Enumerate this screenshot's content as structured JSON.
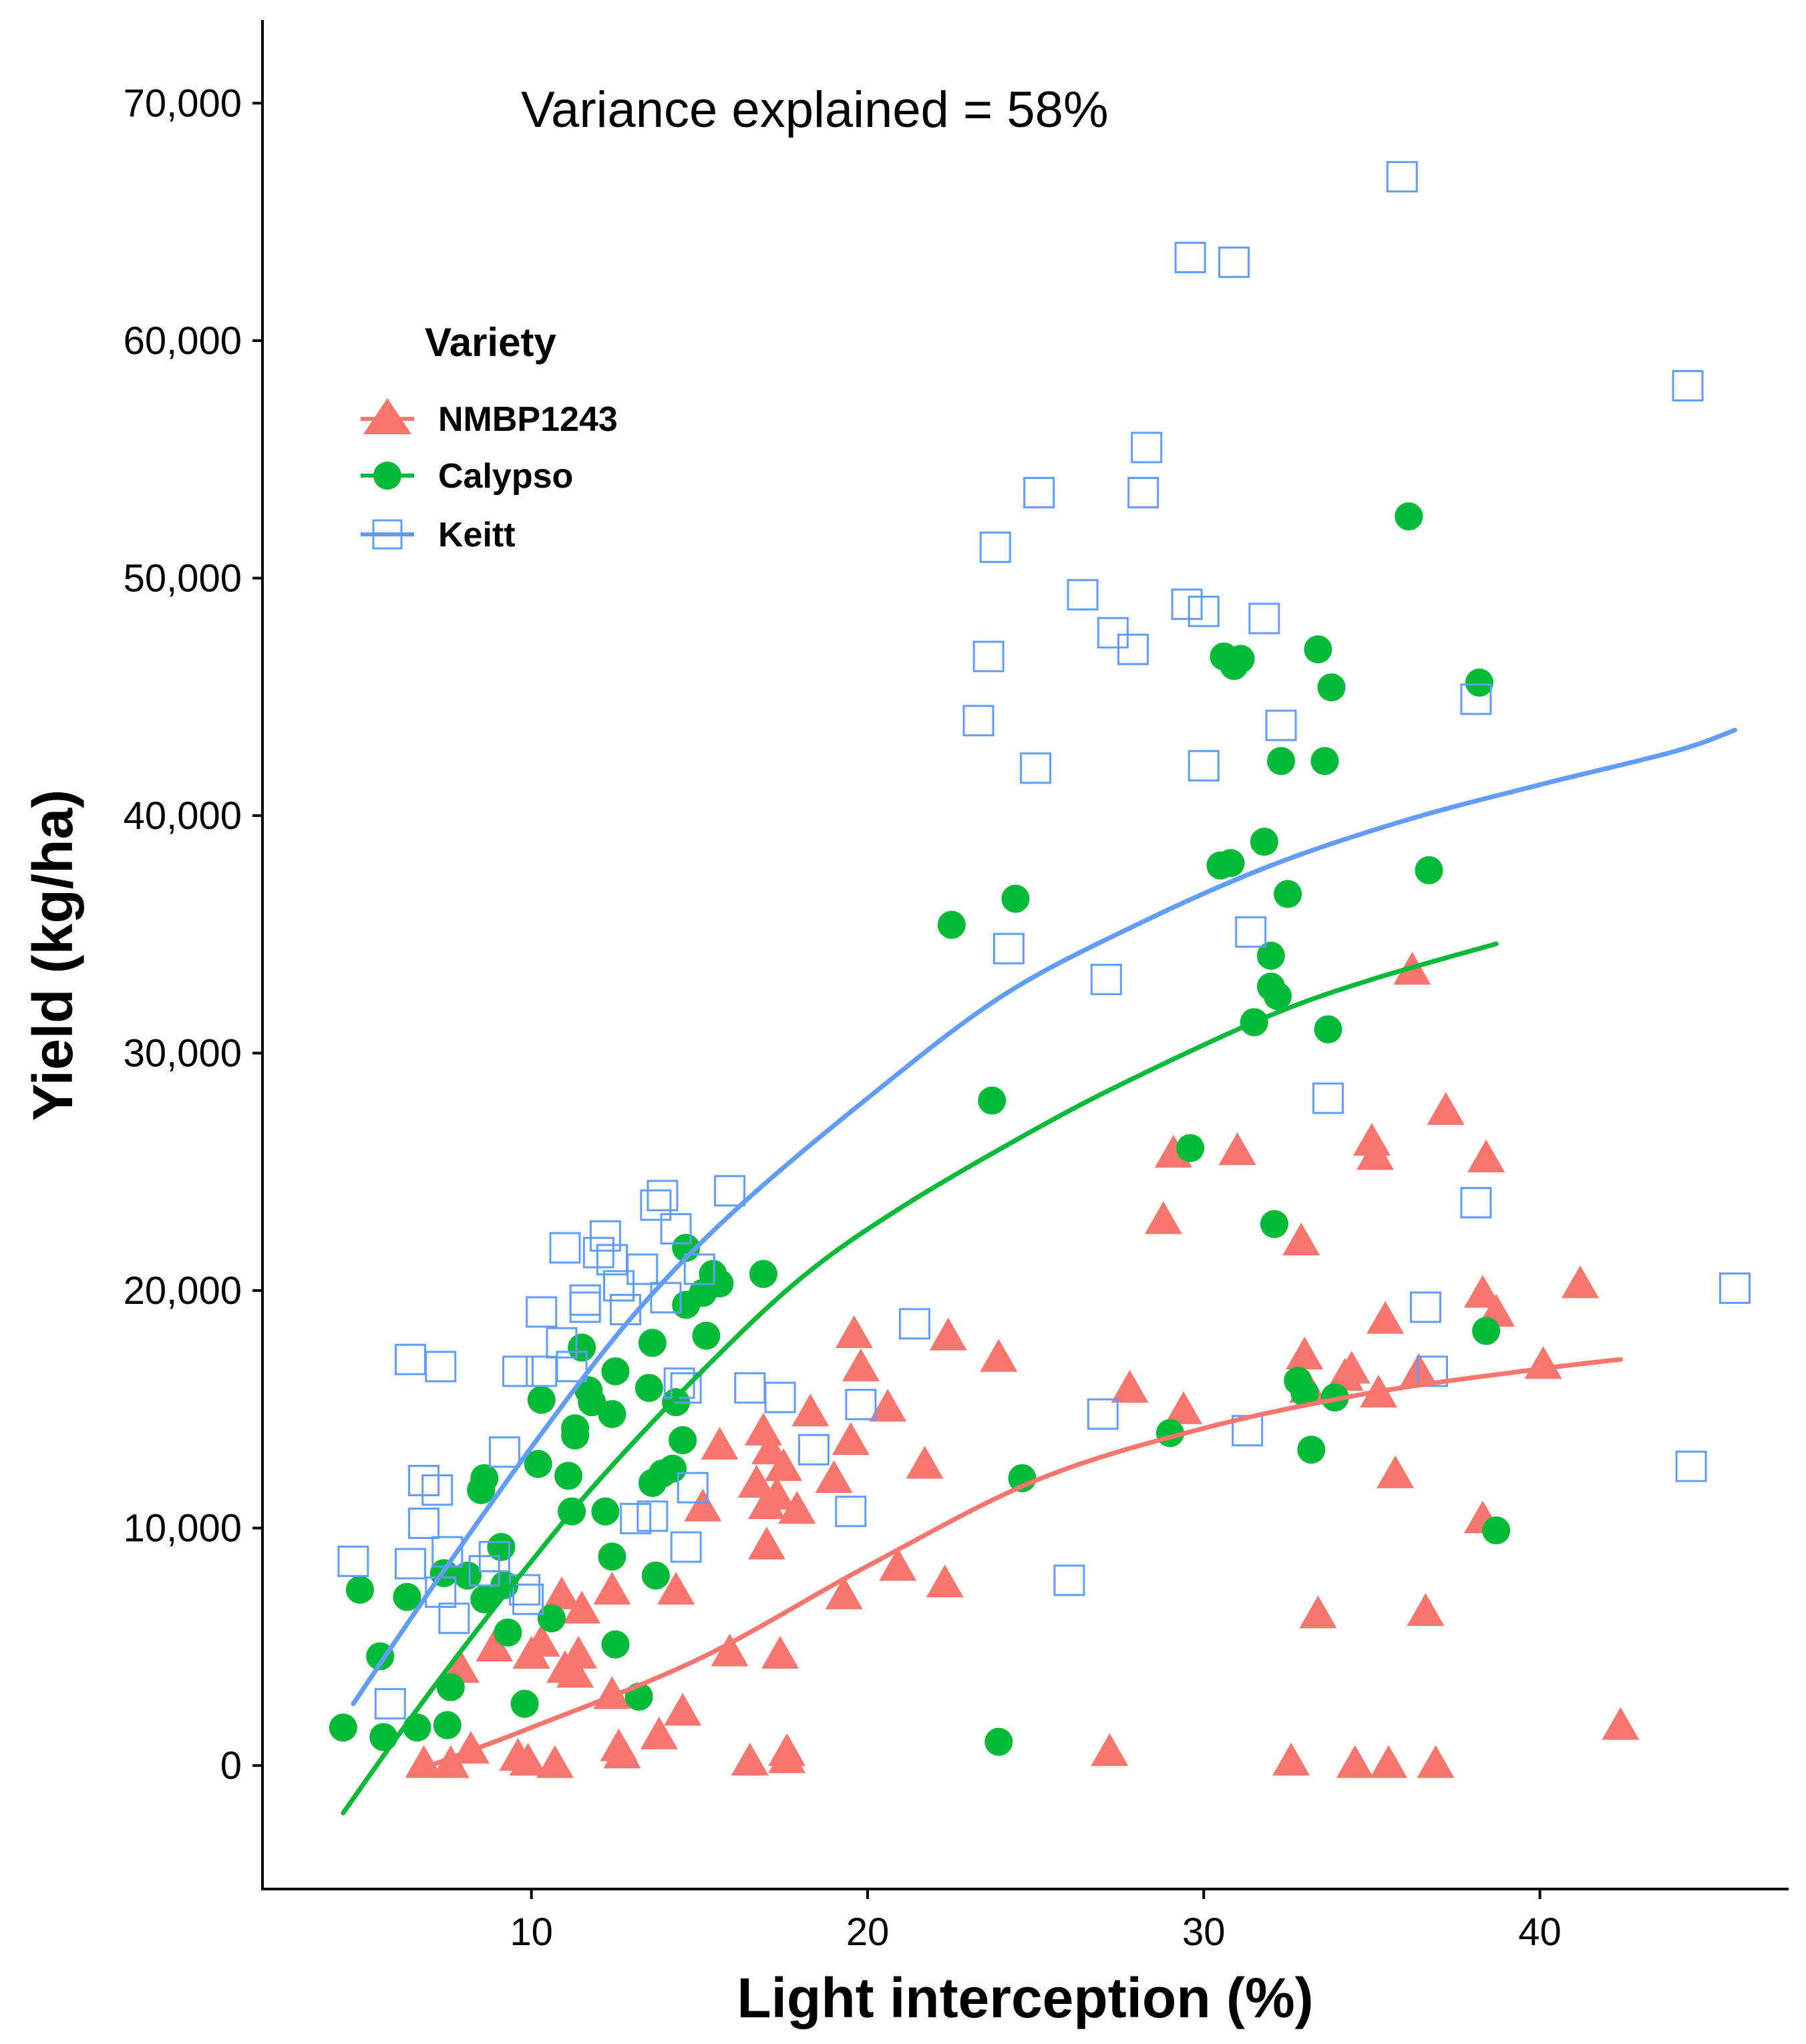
{
  "chart_data": {
    "type": "scatter",
    "title": "",
    "annotation": "Variance explained = 58%",
    "xlabel": "Light interception (%)",
    "ylabel": "Yield (kg/ha)",
    "xlim": [
      2,
      47.4
    ],
    "ylim": [
      -5200,
      73500
    ],
    "x_ticks": [
      10,
      20,
      30,
      40
    ],
    "x_tick_labels": [
      "10",
      "20",
      "30",
      "40"
    ],
    "y_ticks": [
      0,
      10000,
      20000,
      30000,
      40000,
      50000,
      60000,
      70000
    ],
    "y_tick_labels": [
      "0",
      "10,000",
      "20,000",
      "30,000",
      "40,000",
      "50,000",
      "60,000",
      "70,000"
    ],
    "grid": false,
    "legend": {
      "title": "Variety",
      "position": "top-left"
    },
    "series": [
      {
        "name": "NMBP1243",
        "color": "#F8766D",
        "marker": "triangle",
        "points": [
          [
            6.8,
            100
          ],
          [
            7.6,
            100
          ],
          [
            8.2,
            700
          ],
          [
            7.9,
            4100
          ],
          [
            8.9,
            5000
          ],
          [
            9.6,
            400
          ],
          [
            9.9,
            200
          ],
          [
            10.0,
            4700
          ],
          [
            10.3,
            5200
          ],
          [
            10.7,
            100
          ],
          [
            10.9,
            7200
          ],
          [
            11.0,
            4100
          ],
          [
            11.4,
            4700
          ],
          [
            11.5,
            6600
          ],
          [
            11.3,
            3900
          ],
          [
            12.4,
            7400
          ],
          [
            12.4,
            3000
          ],
          [
            12.6,
            800
          ],
          [
            12.7,
            500
          ],
          [
            13.8,
            1300
          ],
          [
            14.3,
            7400
          ],
          [
            14.5,
            2300
          ],
          [
            15.1,
            10900
          ],
          [
            15.6,
            13500
          ],
          [
            15.9,
            4800
          ],
          [
            16.5,
            200
          ],
          [
            16.7,
            11900
          ],
          [
            16.9,
            14100
          ],
          [
            17.0,
            9300
          ],
          [
            17.1,
            13300
          ],
          [
            17.0,
            11000
          ],
          [
            17.3,
            11400
          ],
          [
            17.4,
            4700
          ],
          [
            17.6,
            300
          ],
          [
            17.6,
            600
          ],
          [
            17.5,
            12600
          ],
          [
            17.9,
            10800
          ],
          [
            18.3,
            14900
          ],
          [
            19.0,
            12100
          ],
          [
            19.3,
            7200
          ],
          [
            19.5,
            13700
          ],
          [
            19.6,
            18200
          ],
          [
            19.8,
            16800
          ],
          [
            20.6,
            15100
          ],
          [
            20.9,
            8400
          ],
          [
            21.7,
            12700
          ],
          [
            22.3,
            7700
          ],
          [
            22.4,
            18100
          ],
          [
            23.9,
            17200
          ],
          [
            27.2,
            600
          ],
          [
            27.8,
            15900
          ],
          [
            28.8,
            23000
          ],
          [
            29.1,
            25800
          ],
          [
            29.4,
            15000
          ],
          [
            31.0,
            25900
          ],
          [
            32.6,
            200
          ],
          [
            32.9,
            22100
          ],
          [
            33.0,
            17300
          ],
          [
            33.1,
            15900
          ],
          [
            33.4,
            6400
          ],
          [
            34.2,
            16400
          ],
          [
            34.4,
            16700
          ],
          [
            34.5,
            100
          ],
          [
            35.0,
            26300
          ],
          [
            35.1,
            25700
          ],
          [
            35.2,
            15700
          ],
          [
            35.4,
            18800
          ],
          [
            35.5,
            100
          ],
          [
            35.7,
            12300
          ],
          [
            36.2,
            33500
          ],
          [
            36.4,
            16600
          ],
          [
            36.6,
            6500
          ],
          [
            36.9,
            100
          ],
          [
            37.2,
            27600
          ],
          [
            38.3,
            10400
          ],
          [
            38.3,
            19900
          ],
          [
            38.4,
            25600
          ],
          [
            38.7,
            19100
          ],
          [
            40.1,
            16900
          ],
          [
            41.2,
            20300
          ],
          [
            42.4,
            1700
          ]
        ]
      },
      {
        "name": "Calypso",
        "color": "#00BA38",
        "marker": "circle",
        "points": [
          [
            4.4,
            1600
          ],
          [
            4.9,
            7400
          ],
          [
            5.5,
            4600
          ],
          [
            5.6,
            1200
          ],
          [
            6.3,
            7100
          ],
          [
            6.6,
            1600
          ],
          [
            7.4,
            8100
          ],
          [
            7.5,
            1700
          ],
          [
            7.6,
            3300
          ],
          [
            8.1,
            8000
          ],
          [
            8.5,
            11600
          ],
          [
            8.6,
            12100
          ],
          [
            8.6,
            7000
          ],
          [
            9.1,
            9200
          ],
          [
            9.2,
            7600
          ],
          [
            9.3,
            5600
          ],
          [
            9.8,
            2600
          ],
          [
            10.2,
            12700
          ],
          [
            10.3,
            15400
          ],
          [
            10.6,
            6200
          ],
          [
            11.1,
            12200
          ],
          [
            11.3,
            14200
          ],
          [
            11.3,
            13900
          ],
          [
            11.2,
            10700
          ],
          [
            11.5,
            17600
          ],
          [
            11.7,
            15800
          ],
          [
            11.8,
            15300
          ],
          [
            12.2,
            10700
          ],
          [
            12.4,
            14800
          ],
          [
            12.4,
            8800
          ],
          [
            12.5,
            16600
          ],
          [
            12.5,
            5100
          ],
          [
            13.2,
            2900
          ],
          [
            13.5,
            15900
          ],
          [
            13.6,
            11900
          ],
          [
            13.6,
            17800
          ],
          [
            13.7,
            8000
          ],
          [
            13.9,
            12300
          ],
          [
            14.2,
            12500
          ],
          [
            14.3,
            15300
          ],
          [
            14.5,
            13700
          ],
          [
            14.6,
            19400
          ],
          [
            14.6,
            21800
          ],
          [
            15.1,
            19900
          ],
          [
            15.2,
            18100
          ],
          [
            15.4,
            20700
          ],
          [
            15.6,
            20300
          ],
          [
            16.9,
            20700
          ],
          [
            22.5,
            35400
          ],
          [
            23.7,
            28000
          ],
          [
            23.9,
            1000
          ],
          [
            24.4,
            36500
          ],
          [
            24.6,
            12100
          ],
          [
            29.0,
            14000
          ],
          [
            29.6,
            26000
          ],
          [
            30.5,
            37900
          ],
          [
            30.6,
            46700
          ],
          [
            30.8,
            38000
          ],
          [
            30.9,
            46300
          ],
          [
            31.1,
            46600
          ],
          [
            31.5,
            31300
          ],
          [
            31.8,
            38900
          ],
          [
            32.0,
            34100
          ],
          [
            32.0,
            32800
          ],
          [
            32.1,
            22800
          ],
          [
            32.2,
            32400
          ],
          [
            32.3,
            42300
          ],
          [
            32.5,
            36700
          ],
          [
            32.8,
            16200
          ],
          [
            33.0,
            15700
          ],
          [
            33.2,
            13300
          ],
          [
            33.4,
            47000
          ],
          [
            33.6,
            42300
          ],
          [
            33.7,
            31000
          ],
          [
            33.8,
            45400
          ],
          [
            33.9,
            15500
          ],
          [
            36.1,
            52600
          ],
          [
            36.7,
            37700
          ],
          [
            38.2,
            45600
          ],
          [
            38.4,
            18300
          ],
          [
            38.7,
            9900
          ]
        ]
      },
      {
        "name": "Keitt",
        "color": "#619CFF",
        "marker": "square-open",
        "points": [
          [
            4.7,
            8600
          ],
          [
            5.8,
            2600
          ],
          [
            6.4,
            17100
          ],
          [
            6.4,
            8500
          ],
          [
            6.8,
            12000
          ],
          [
            6.8,
            10200
          ],
          [
            7.2,
            11600
          ],
          [
            7.3,
            16800
          ],
          [
            7.3,
            7300
          ],
          [
            7.5,
            9000
          ],
          [
            7.7,
            6200
          ],
          [
            8.6,
            8200
          ],
          [
            8.9,
            8800
          ],
          [
            9.2,
            13200
          ],
          [
            9.6,
            16600
          ],
          [
            9.8,
            7400
          ],
          [
            9.9,
            7000
          ],
          [
            10.3,
            19100
          ],
          [
            10.3,
            16600
          ],
          [
            10.9,
            17800
          ],
          [
            11.0,
            21800
          ],
          [
            11.2,
            16800
          ],
          [
            11.6,
            19300
          ],
          [
            11.6,
            19600
          ],
          [
            12.0,
            21600
          ],
          [
            12.2,
            22300
          ],
          [
            12.4,
            21300
          ],
          [
            12.6,
            20200
          ],
          [
            12.8,
            19200
          ],
          [
            13.1,
            10400
          ],
          [
            13.3,
            20900
          ],
          [
            13.6,
            10500
          ],
          [
            13.7,
            23600
          ],
          [
            13.9,
            24000
          ],
          [
            14.0,
            19700
          ],
          [
            14.3,
            22600
          ],
          [
            14.4,
            16100
          ],
          [
            14.6,
            9200
          ],
          [
            14.6,
            15900
          ],
          [
            14.8,
            11700
          ],
          [
            15.0,
            20900
          ],
          [
            15.9,
            24200
          ],
          [
            16.5,
            15900
          ],
          [
            17.4,
            15500
          ],
          [
            18.4,
            13300
          ],
          [
            19.5,
            10700
          ],
          [
            19.8,
            15200
          ],
          [
            21.4,
            18600
          ],
          [
            23.3,
            44000
          ],
          [
            23.6,
            46700
          ],
          [
            23.8,
            51300
          ],
          [
            24.2,
            34400
          ],
          [
            25.0,
            42000
          ],
          [
            25.1,
            53600
          ],
          [
            26.0,
            7800
          ],
          [
            26.4,
            49300
          ],
          [
            27.0,
            14800
          ],
          [
            27.1,
            33100
          ],
          [
            27.3,
            47700
          ],
          [
            27.9,
            47000
          ],
          [
            28.2,
            53600
          ],
          [
            28.3,
            55500
          ],
          [
            29.5,
            48900
          ],
          [
            29.6,
            63500
          ],
          [
            30.0,
            48600
          ],
          [
            30.0,
            42100
          ],
          [
            30.9,
            63300
          ],
          [
            31.3,
            14100
          ],
          [
            31.4,
            35100
          ],
          [
            31.8,
            48300
          ],
          [
            32.3,
            43800
          ],
          [
            33.7,
            28100
          ],
          [
            35.9,
            66900
          ],
          [
            36.6,
            19300
          ],
          [
            36.8,
            16600
          ],
          [
            38.1,
            23700
          ],
          [
            38.1,
            44900
          ],
          [
            44.4,
            58100
          ],
          [
            44.5,
            12600
          ],
          [
            45.8,
            20100
          ]
        ]
      }
    ],
    "fitted_curves": [
      {
        "name": "NMBP1243",
        "color": "#F8766D",
        "x": [
          6.8,
          10,
          15,
          20,
          25,
          30,
          35,
          40,
          42.4
        ],
        "y": [
          -100,
          1600,
          4500,
          8400,
          12000,
          14200,
          15700,
          16700,
          17100
        ]
      },
      {
        "name": "Calypso",
        "color": "#00BA38",
        "x": [
          4.4,
          6,
          8,
          10,
          12,
          15,
          18,
          21,
          25,
          28,
          32,
          35,
          38.7
        ],
        "y": [
          -2000,
          1200,
          5000,
          8600,
          12000,
          16500,
          20500,
          23500,
          26800,
          29000,
          31600,
          33100,
          34600
        ]
      },
      {
        "name": "Keitt",
        "color": "#619CFF",
        "x": [
          4.7,
          7,
          10,
          13,
          16,
          20,
          24,
          28,
          32,
          36,
          40,
          44,
          45.8
        ],
        "y": [
          2600,
          7400,
          13400,
          18900,
          23300,
          28100,
          32400,
          35400,
          37900,
          39800,
          41300,
          42700,
          43600
        ]
      }
    ]
  }
}
